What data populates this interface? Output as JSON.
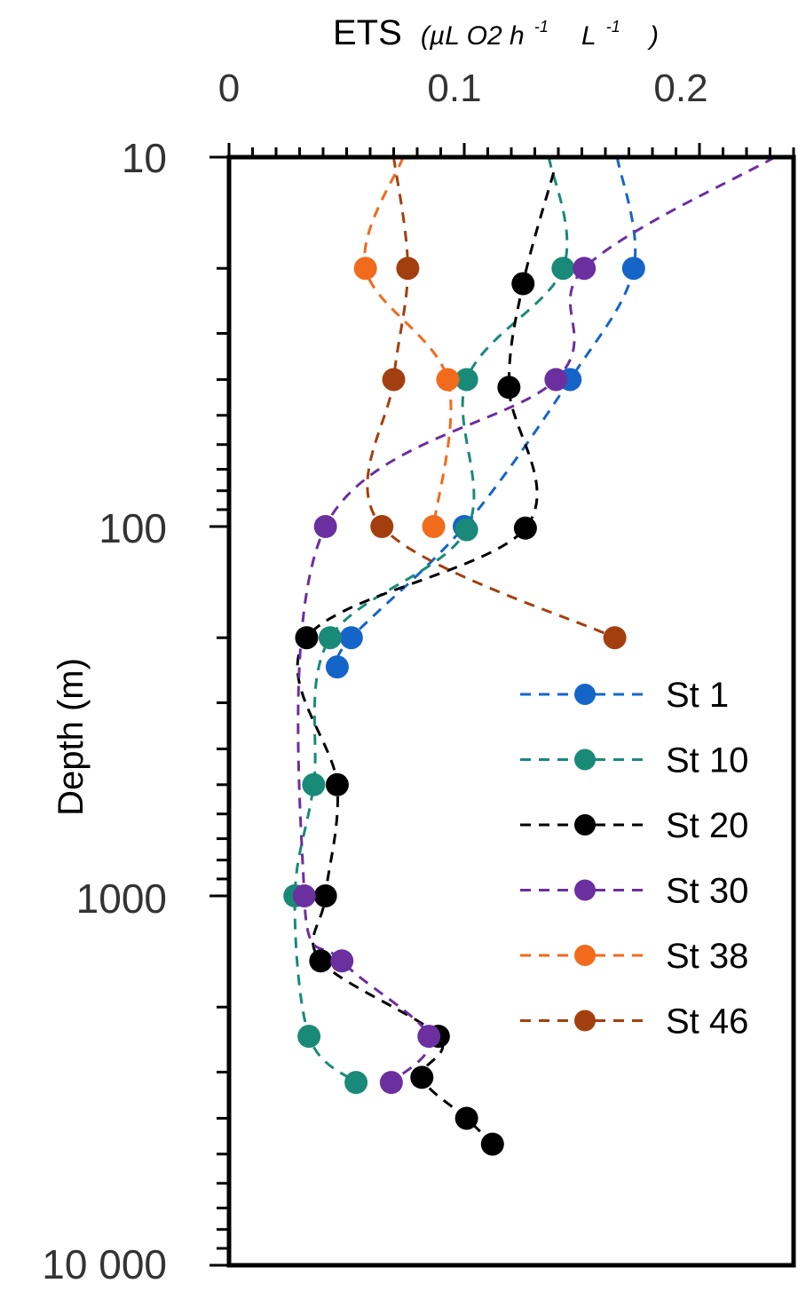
{
  "chart_data": {
    "type": "scatter",
    "title": "",
    "xlabel_main": "ETS",
    "xlabel_units": "(µL O2 h",
    "xlabel_units_sup1": "-1",
    "xlabel_units_mid": "L",
    "xlabel_units_sup2": "-1",
    "xlabel_units_end": ")",
    "ylabel": "Depth (m)",
    "x_axis_position": "top",
    "xlim": [
      0,
      0.24
    ],
    "ylim": [
      10,
      10000
    ],
    "y_scale": "log",
    "y_inverted": true,
    "grid": false,
    "legend_position": "right",
    "x_tick_values": [
      0,
      0.1,
      0.2
    ],
    "x_tick_labels": [
      "0",
      "0.1",
      "0.2"
    ],
    "y_tick_values": [
      10,
      100,
      1000,
      10000
    ],
    "y_tick_labels": [
      "10",
      "100",
      "1000",
      "10 000"
    ],
    "series": [
      {
        "name": "St 1",
        "color": "#1565c8",
        "curve_top": [
          0.165,
          10
        ],
        "points": [
          [
            0.172,
            20
          ],
          [
            0.145,
            40
          ],
          [
            0.1,
            100
          ],
          [
            0.052,
            200
          ],
          [
            0.046,
            240
          ]
        ]
      },
      {
        "name": "St 10",
        "color": "#1a8a78",
        "curve_top": [
          0.136,
          10
        ],
        "points": [
          [
            0.142,
            20
          ],
          [
            0.101,
            40
          ],
          [
            0.101,
            102
          ],
          [
            0.043,
            200
          ],
          [
            0.036,
            500
          ],
          [
            0.028,
            1000
          ],
          [
            0.034,
            2400
          ],
          [
            0.054,
            3200
          ]
        ]
      },
      {
        "name": "St 20",
        "color": "#000000",
        "curve_top": [
          0.138,
          11
        ],
        "points": [
          [
            0.125,
            22
          ],
          [
            0.119,
            42
          ],
          [
            0.126,
            101
          ],
          [
            0.033,
            200
          ],
          [
            0.046,
            500
          ],
          [
            0.041,
            1000
          ],
          [
            0.039,
            1500
          ],
          [
            0.089,
            2400
          ],
          [
            0.082,
            3100
          ],
          [
            0.101,
            4000
          ],
          [
            0.112,
            4700
          ]
        ]
      },
      {
        "name": "St 30",
        "color": "#6b2fa0",
        "curve_top": [
          0.232,
          10
        ],
        "points": [
          [
            0.151,
            20
          ],
          [
            0.139,
            40
          ],
          [
            0.041,
            100
          ],
          [
            0.032,
            1000
          ],
          [
            0.048,
            1500
          ],
          [
            0.085,
            2400
          ],
          [
            0.069,
            3200
          ]
        ]
      },
      {
        "name": "St 38",
        "color": "#f26a1b",
        "curve_top": [
          0.074,
          10
        ],
        "points": [
          [
            0.058,
            20
          ],
          [
            0.093,
            40
          ],
          [
            0.087,
            100
          ]
        ]
      },
      {
        "name": "St 46",
        "color": "#a33f0f",
        "curve_top": [
          0.07,
          10
        ],
        "points": [
          [
            0.076,
            20
          ],
          [
            0.07,
            40
          ],
          [
            0.065,
            100
          ],
          [
            0.164,
            200
          ]
        ]
      }
    ]
  }
}
